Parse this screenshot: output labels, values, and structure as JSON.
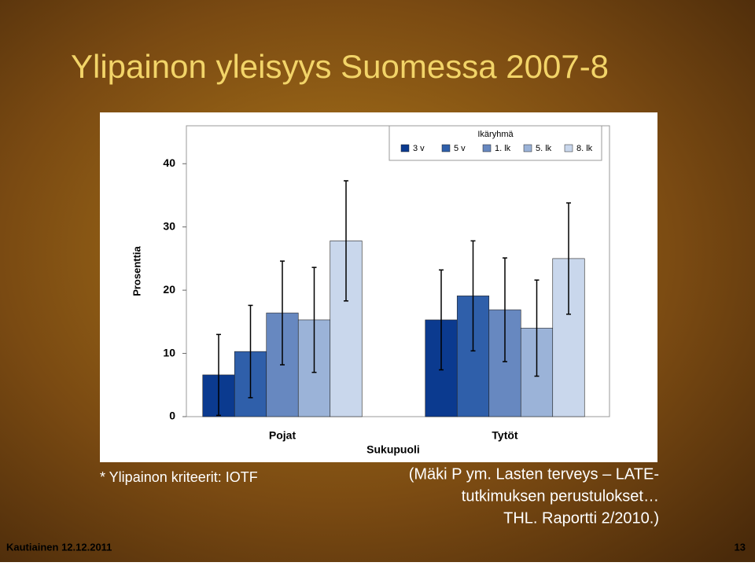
{
  "title": "Ylipainon yleisyys Suomessa 2007-8",
  "footnote": "* Ylipainon kriteerit: IOTF",
  "source": [
    "(Mäki P ym. Lasten terveys – LATE-",
    "tutkimuksen perustulokset…",
    "THL. Raportti 2/2010.)"
  ],
  "footer_left": "Kautiainen 12.12.2011",
  "page_number": "13",
  "chart_data": {
    "type": "bar",
    "xlabel": "Sukupuoli",
    "ylabel": "Prosenttia",
    "legend_title": "Ikäryhmä",
    "legend": "top-right",
    "categories": [
      "Pojat",
      "Tytöt"
    ],
    "series": [
      {
        "name": "3 v",
        "color": "#0b3a8f",
        "values": [
          6.6,
          15.3
        ],
        "errors": [
          6.4,
          7.9
        ]
      },
      {
        "name": "5 v",
        "color": "#2f5faa",
        "values": [
          10.3,
          19.1
        ],
        "errors": [
          7.3,
          8.7
        ]
      },
      {
        "name": "1. lk",
        "color": "#6788c0",
        "values": [
          16.4,
          16.9
        ],
        "errors": [
          8.2,
          8.2
        ]
      },
      {
        "name": "5. lk",
        "color": "#9bb3d8",
        "values": [
          15.3,
          14.0
        ],
        "errors": [
          8.3,
          7.6
        ]
      },
      {
        "name": "8. lk",
        "color": "#c9d7ec",
        "values": [
          27.8,
          25.0
        ],
        "errors": [
          9.5,
          8.8
        ]
      }
    ],
    "ylim": [
      0,
      46
    ],
    "yticks": [
      0,
      10,
      20,
      30,
      40
    ]
  }
}
